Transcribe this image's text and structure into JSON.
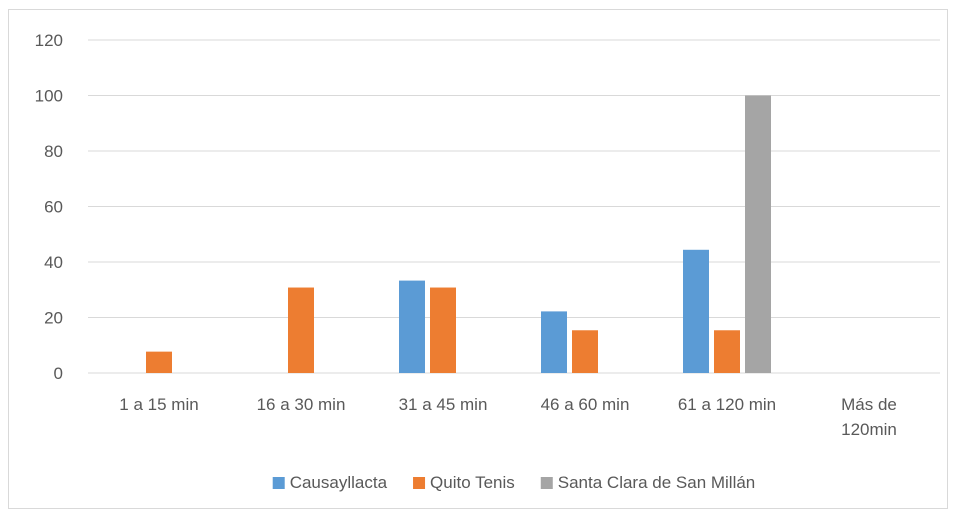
{
  "chart_data": {
    "type": "bar",
    "title": "",
    "xlabel": "",
    "ylabel": "",
    "categories": [
      [
        "1 a 15 min"
      ],
      [
        "16 a 30 min"
      ],
      [
        "31 a 45  min"
      ],
      [
        "46 a 60 min"
      ],
      [
        "61 a 120 min"
      ],
      [
        "Más de",
        "120min"
      ]
    ],
    "series": [
      {
        "name": "Causayllacta",
        "color": "#5b9bd5",
        "values": [
          0,
          0,
          33.3,
          22.2,
          44.4,
          0
        ]
      },
      {
        "name": "Quito Tenis",
        "color": "#ed7d31",
        "values": [
          7.7,
          30.8,
          30.8,
          15.4,
          15.4,
          0
        ]
      },
      {
        "name": "Santa Clara de San Millán",
        "color": "#a5a5a5",
        "values": [
          0,
          0,
          0,
          0,
          100,
          0
        ]
      }
    ],
    "ylim": [
      0,
      120
    ],
    "yticks": [
      0,
      20,
      40,
      60,
      80,
      100,
      120
    ],
    "grid": true,
    "legend": "bottom"
  }
}
